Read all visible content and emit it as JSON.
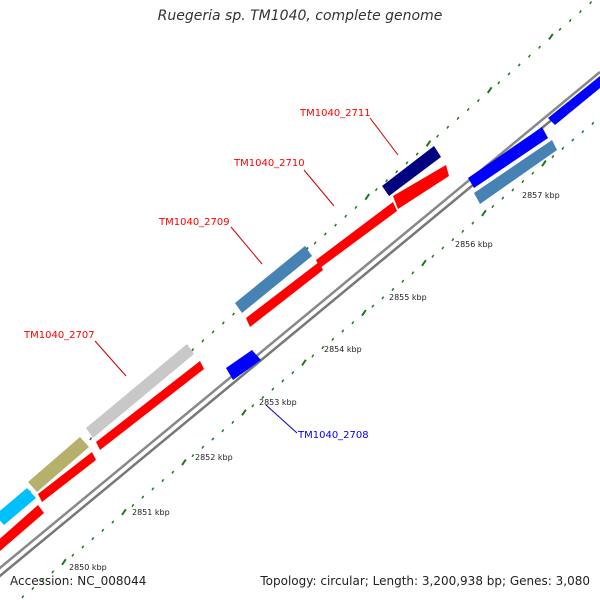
{
  "title": "Ruegeria sp. TM1040, complete genome",
  "footer": {
    "accession": "Accession: NC_008044",
    "summary": "Topology: circular; Length: 3,200,938 bp; Genes: 3,080"
  },
  "colors": {
    "red": "#ff0000",
    "steelblue": "#4682b4",
    "navy": "#000080",
    "blue": "#0000ff",
    "silver": "#c8c8c8",
    "khaki": "#b5b06a",
    "cyan": "#00bfff",
    "backbone": "#888888",
    "tick": "#1a7a1a"
  },
  "axis": {
    "unit": "kbp",
    "labeled_ticks": [
      "2850 kbp",
      "2851 kbp",
      "2852 kbp",
      "2853 kbp",
      "2854 kbp",
      "2855 kbp",
      "2856 kbp",
      "2857 kbp"
    ]
  },
  "gene_labels": [
    {
      "name": "TM1040_2707",
      "color": "red"
    },
    {
      "name": "TM1040_2708",
      "color": "blue"
    },
    {
      "name": "TM1040_2709",
      "color": "red"
    },
    {
      "name": "TM1040_2710",
      "color": "red"
    },
    {
      "name": "TM1040_2711",
      "color": "red"
    }
  ]
}
